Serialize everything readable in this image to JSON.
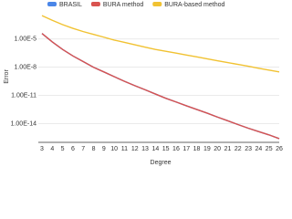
{
  "chart_data": {
    "type": "line",
    "x_label": "Degree",
    "y_label": "Error",
    "categories": [
      "3",
      "4",
      "5",
      "6",
      "7",
      "8",
      "9",
      "10",
      "11",
      "12",
      "13",
      "14",
      "15",
      "16",
      "17",
      "18",
      "19",
      "20",
      "21",
      "22",
      "23",
      "24",
      "25",
      "26"
    ],
    "log_scale_y": true,
    "ylim": [
      1e-16,
      0.01
    ],
    "yticks": [
      {
        "value": 1e-05,
        "label": "1.00E-5"
      },
      {
        "value": 1e-08,
        "label": "1.00E-8"
      },
      {
        "value": 1e-11,
        "label": "1.00E-11"
      },
      {
        "value": 1e-14,
        "label": "1.00E-14"
      }
    ],
    "grid": true,
    "legend": "top",
    "series": [
      {
        "name": "BRASIL",
        "color": "#4a86e8",
        "values": [
          4e-05,
          5e-06,
          7.9e-07,
          1.6e-07,
          4e-08,
          1e-08,
          3.2e-09,
          1e-09,
          3.2e-10,
          1.1e-10,
          4e-11,
          1.4e-11,
          5e-12,
          2e-12,
          7.9e-13,
          3.2e-13,
          1.3e-13,
          5e-14,
          2e-14,
          7.9e-15,
          3.2e-15,
          1.4e-15,
          6.3e-16,
          2.5e-16
        ]
      },
      {
        "name": "BURA method",
        "color": "#d9534f",
        "values": [
          4e-05,
          5e-06,
          7.9e-07,
          1.6e-07,
          4e-08,
          1e-08,
          3.2e-09,
          1e-09,
          3.2e-10,
          1.1e-10,
          4e-11,
          1.4e-11,
          5e-12,
          2e-12,
          7.9e-13,
          3.2e-13,
          1.3e-13,
          5e-14,
          2e-14,
          7.9e-15,
          3.2e-15,
          1.4e-15,
          6.3e-16,
          2.5e-16
        ]
      },
      {
        "name": "BURA-based method",
        "color": "#f1c232",
        "values": [
          0.0032,
          0.001,
          0.00035,
          0.00014,
          6.3e-05,
          3.2e-05,
          1.6e-05,
          7.9e-06,
          4.5e-06,
          2.5e-06,
          1.4e-06,
          7.9e-07,
          5e-07,
          3.2e-07,
          2e-07,
          1.3e-07,
          7.9e-08,
          5e-08,
          3.2e-08,
          2e-08,
          1.3e-08,
          7.9e-09,
          5e-09,
          3.2e-09
        ]
      }
    ]
  }
}
